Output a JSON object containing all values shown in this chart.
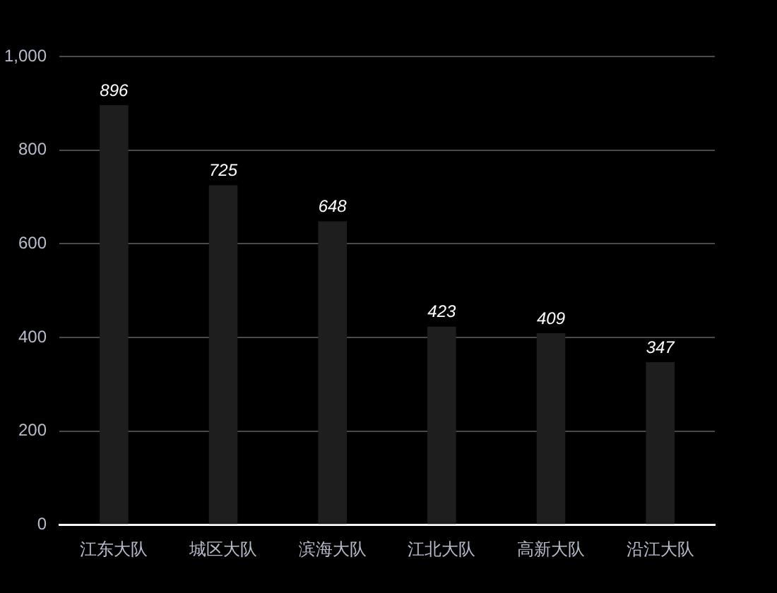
{
  "chart_data": {
    "type": "bar",
    "categories": [
      "江东大队",
      "城区大队",
      "滨海大队",
      "江北大队",
      "高新大队",
      "沿江大队"
    ],
    "values": [
      896,
      725,
      648,
      423,
      409,
      347
    ],
    "color": "#1e1e1e",
    "ylim": [
      0,
      1000
    ],
    "yticks": [
      0,
      200,
      400,
      600,
      800,
      {
        "value": 1000,
        "label": "1,000"
      }
    ],
    "grid": "y",
    "legend": false,
    "data_labels": true
  }
}
